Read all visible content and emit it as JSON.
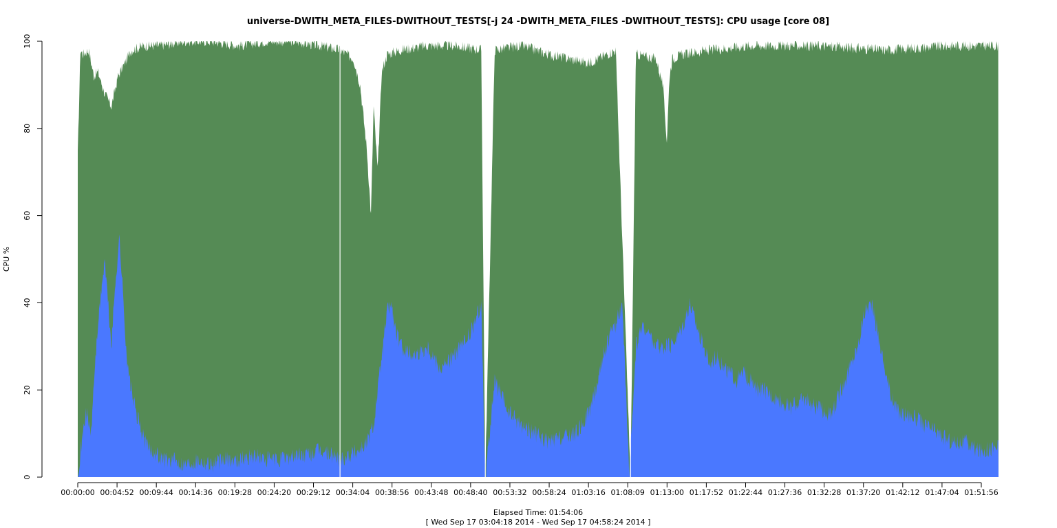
{
  "colors": {
    "system": "#558b55",
    "user": "#4a78ff",
    "gap": "#ffffff",
    "axis": "#000000"
  },
  "chart_data": {
    "type": "area",
    "title": "universe-DWITH_META_FILES-DWITHOUT_TESTS[-j 24 -DWITH_META_FILES -DWITHOUT_TESTS]: CPU usage [core 08]",
    "xlabel": "Elapsed Time: 01:54:06",
    "xlabel_sub": "[ Wed Sep 17 03:04:18 2014 - Wed Sep 17 04:58:24 2014 ]",
    "ylabel": "CPU %",
    "ylim": [
      0,
      100
    ],
    "xlim_seconds": [
      0,
      6846
    ],
    "y_ticks": [
      0,
      20,
      40,
      60,
      80,
      100
    ],
    "x_ticks": [
      "00:00:00",
      "00:04:52",
      "00:09:44",
      "00:14:36",
      "00:19:28",
      "00:24:20",
      "00:29:12",
      "00:34:04",
      "00:38:56",
      "00:43:48",
      "00:48:40",
      "00:53:32",
      "00:58:24",
      "01:03:16",
      "01:08:09",
      "01:13:00",
      "01:17:52",
      "01:22:44",
      "01:27:36",
      "01:32:28",
      "01:37:20",
      "01:42:12",
      "01:47:04",
      "01:51:56"
    ],
    "gaps_seconds": [
      1950,
      3030,
      4110
    ],
    "series": [
      {
        "key": "user",
        "x_seconds": [
          0,
          60,
          100,
          120,
          150,
          200,
          250,
          280,
          310,
          340,
          370,
          400,
          430,
          460,
          490,
          520,
          560,
          600,
          650,
          700,
          800,
          900,
          1000,
          1100,
          1200,
          1300,
          1400,
          1500,
          1600,
          1700,
          1800,
          1900,
          1950,
          2000,
          2080,
          2150,
          2200,
          2250,
          2300,
          2330,
          2360,
          2400,
          2500,
          2600,
          2700,
          2800,
          2900,
          2950,
          3000,
          3030,
          3100,
          3200,
          3300,
          3400,
          3500,
          3600,
          3700,
          3750,
          3800,
          3850,
          3900,
          3950,
          4000,
          4050,
          4100,
          4150,
          4200,
          4300,
          4400,
          4450,
          4500,
          4550,
          4600,
          4650,
          4700,
          4750,
          4800,
          4850,
          4900,
          4950,
          5000,
          5050,
          5100,
          5200,
          5300,
          5400,
          5500,
          5600,
          5700,
          5800,
          5850,
          5900,
          5950,
          6000,
          6050,
          6100,
          6200,
          6300,
          6400,
          6500,
          6600,
          6700,
          6846
        ],
        "values": [
          1,
          15,
          10,
          22,
          35,
          50,
          30,
          45,
          55,
          40,
          25,
          20,
          15,
          12,
          9,
          7,
          6,
          5,
          4,
          4,
          3,
          4,
          3,
          4,
          4,
          5,
          4,
          4,
          5,
          5,
          6,
          5,
          4,
          5,
          6,
          8,
          12,
          25,
          38,
          40,
          34,
          30,
          28,
          30,
          25,
          28,
          32,
          35,
          40,
          0,
          22,
          15,
          12,
          10,
          8,
          9,
          10,
          12,
          15,
          20,
          27,
          32,
          35,
          40,
          0,
          30,
          35,
          30,
          30,
          32,
          35,
          40,
          35,
          30,
          26,
          28,
          25,
          24,
          22,
          24,
          22,
          20,
          20,
          18,
          16,
          18,
          16,
          14,
          22,
          30,
          38,
          40,
          33,
          25,
          18,
          15,
          14,
          12,
          10,
          8,
          8,
          6,
          7
        ]
      },
      {
        "key": "total",
        "x_seconds": [
          0,
          20,
          40,
          80,
          120,
          150,
          200,
          250,
          300,
          400,
          500,
          600,
          800,
          1000,
          1200,
          1400,
          1600,
          1800,
          1950,
          2050,
          2100,
          2150,
          2180,
          2200,
          2230,
          2260,
          2300,
          2400,
          2600,
          2800,
          3000,
          3030,
          3100,
          3300,
          3500,
          3800,
          4000,
          4110,
          4150,
          4300,
          4350,
          4380,
          4400,
          4420,
          4500,
          4700,
          5000,
          5500,
          6000,
          6500,
          6846
        ],
        "values": [
          74,
          98,
          97,
          98,
          92,
          93,
          88,
          85,
          92,
          98,
          99,
          99,
          100,
          100,
          99,
          100,
          100,
          99,
          98,
          96,
          90,
          75,
          60,
          85,
          70,
          93,
          97,
          98,
          99,
          99,
          98,
          0,
          98,
          99,
          97,
          95,
          98,
          0,
          97,
          96,
          90,
          77,
          92,
          96,
          97,
          98,
          99,
          99,
          98,
          99,
          99
        ]
      }
    ]
  }
}
